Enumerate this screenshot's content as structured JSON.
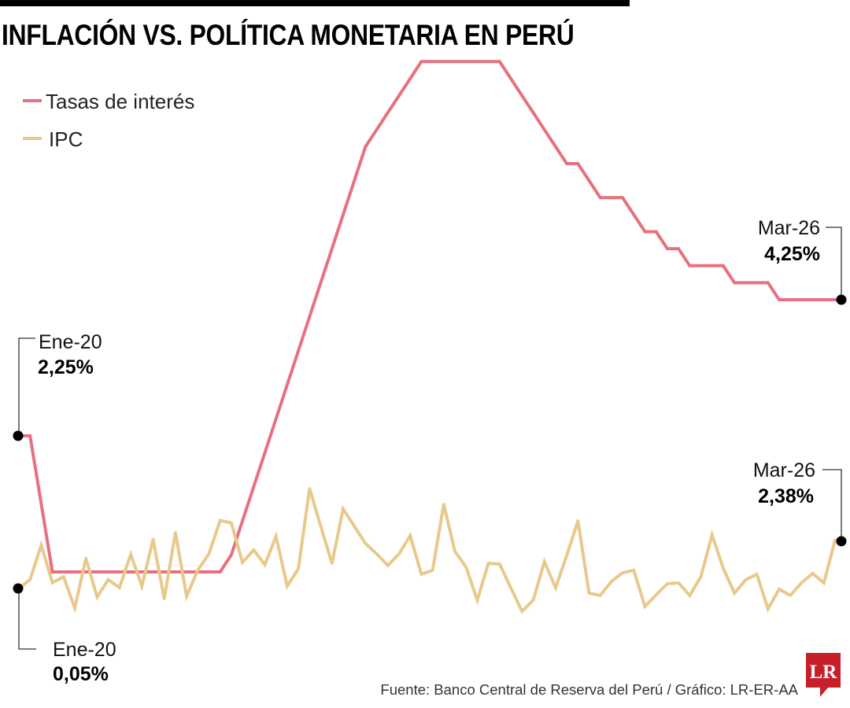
{
  "title": "INFLACIÓN VS. POLÍTICA MONETARIA EN PERÚ",
  "source": "Fuente: Banco Central de Reserva del Perú / Gráfico: LR-ER-AA",
  "logo_text": "LR",
  "colors": {
    "rate": "#e8707e",
    "ipc": "#e9c98b",
    "logo": "#c8202a",
    "annotation": "#000000"
  },
  "chart_data": {
    "type": "line",
    "title": "INFLACIÓN VS. POLÍTICA MONETARIA EN PERÚ",
    "xlabel": "",
    "ylabel": "",
    "grid": false,
    "legend_position": "top-left",
    "x_start": "Ene-20",
    "x_end": "Mar-26",
    "series": [
      {
        "name": "Tasas de interés",
        "color": "#e8707e",
        "values": [
          2.25,
          2.25,
          1.25,
          0.25,
          0.25,
          0.25,
          0.25,
          0.25,
          0.25,
          0.25,
          0.25,
          0.25,
          0.25,
          0.25,
          0.25,
          0.25,
          0.25,
          0.25,
          0.25,
          0.5,
          1.0,
          1.5,
          2.0,
          2.5,
          3.0,
          3.5,
          4.0,
          4.5,
          5.0,
          5.5,
          6.0,
          6.5,
          6.75,
          7.0,
          7.25,
          7.5,
          7.75,
          7.75,
          7.75,
          7.75,
          7.75,
          7.75,
          7.75,
          7.75,
          7.5,
          7.25,
          7.0,
          6.75,
          6.5,
          6.25,
          6.25,
          6.0,
          5.75,
          5.75,
          5.75,
          5.5,
          5.25,
          5.25,
          5.0,
          5.0,
          4.75,
          4.75,
          4.75,
          4.75,
          4.5,
          4.5,
          4.5,
          4.5,
          4.25,
          4.25,
          4.25,
          4.25,
          4.25,
          4.25
        ]
      },
      {
        "name": "IPC",
        "color": "#e9c98b",
        "values": [
          0.05,
          0.48,
          2.15,
          0.33,
          0.62,
          -0.9,
          1.51,
          -0.37,
          0.47,
          0.09,
          1.7,
          0.16,
          2.43,
          -0.45,
          2.76,
          -0.33,
          0.94,
          1.73,
          3.35,
          3.23,
          1.31,
          1.92,
          1.2,
          2.58,
          0.16,
          1.0,
          4.9,
          3.07,
          1.27,
          3.91,
          3.07,
          2.23,
          1.73,
          1.16,
          1.73,
          2.61,
          0.74,
          0.93,
          4.14,
          1.85,
          1.08,
          -0.52,
          1.27,
          1.23,
          0.09,
          -1.06,
          -0.52,
          1.35,
          0.09,
          1.65,
          3.33,
          -0.18,
          -0.29,
          0.39,
          0.81,
          0.93,
          -0.83,
          -0.26,
          0.28,
          0.32,
          -0.29,
          0.62,
          2.65,
          1.04,
          -0.18,
          0.47,
          0.74,
          -0.94,
          0.01,
          -0.29,
          0.32,
          0.78,
          0.32,
          2.38
        ]
      }
    ],
    "annotations": [
      {
        "series": "Tasas de interés",
        "label": "Ene-20",
        "value": "2,25%"
      },
      {
        "series": "Tasas de interés",
        "label": "Mar-26",
        "value": "4,25%"
      },
      {
        "series": "IPC",
        "label": "Ene-20",
        "value": "0,05%"
      },
      {
        "series": "IPC",
        "label": "Mar-26",
        "value": "2,38%"
      }
    ]
  }
}
